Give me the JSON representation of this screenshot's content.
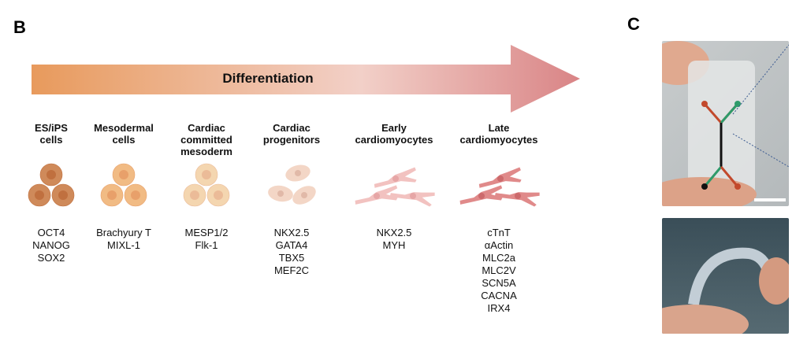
{
  "panels": {
    "b": "B",
    "c": "C"
  },
  "arrow": {
    "label": "Differentiation",
    "colors": [
      "#e89a5c",
      "#f2d0c8",
      "#d98486"
    ]
  },
  "stages": [
    {
      "title": [
        "ES/iPS",
        "cells"
      ],
      "markers": [
        "OCT4",
        "NANOG",
        "SOX2"
      ],
      "cell_color": "#cf8a5a",
      "nucleus_color": "#c0703f"
    },
    {
      "title": [
        "Mesodermal",
        "cells"
      ],
      "markers": [
        "Brachyury T",
        "MIXL-1"
      ],
      "cell_color": "#f1bb84",
      "nucleus_color": "#e8a06a"
    },
    {
      "title": [
        "Cardiac",
        "committed",
        "mesoderm"
      ],
      "markers": [
        "MESP1/2",
        "Flk-1"
      ],
      "cell_color": "#f4d6b0",
      "nucleus_color": "#ebbb98"
    },
    {
      "title": [
        "Cardiac",
        "progenitors"
      ],
      "markers": [
        "NKX2.5",
        "GATA4",
        "TBX5",
        "MEF2C"
      ],
      "cell_color": "#f3d6c6",
      "nucleus_color": "#e1b9a8"
    },
    {
      "title": [
        "Early",
        "cardiomyocytes"
      ],
      "markers": [
        "NKX2.5",
        "MYH"
      ],
      "cell_color": "#f2c2c0",
      "nucleus_color": "#e6a6a6"
    },
    {
      "title": [
        "Late",
        "cardiomyocytes"
      ],
      "markers": [
        "cTnT",
        "αActin",
        "MLC2a",
        "MLC2V",
        "SCN5A",
        "CACNA",
        "IRX4"
      ],
      "cell_color": "#e08a8a",
      "nucleus_color": "#cc6a6c"
    }
  ]
}
